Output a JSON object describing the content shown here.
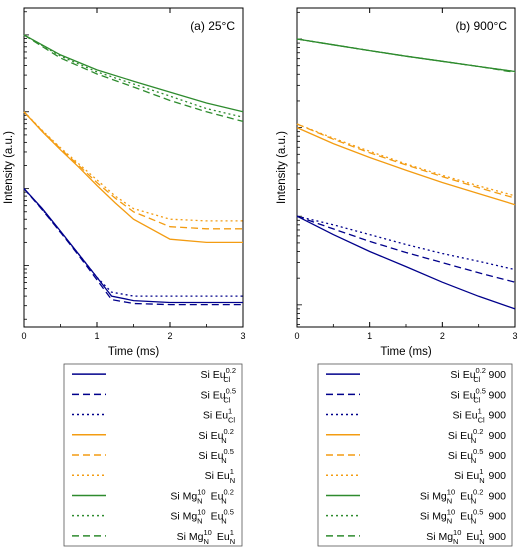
{
  "chart_data": [
    {
      "type": "line",
      "panel_label": "(a) 25°C",
      "xlabel": "Time (ms)",
      "ylabel": "Intensity (a.u.)",
      "xlim": [
        0,
        3
      ],
      "xticks": [
        0,
        1,
        2,
        3
      ],
      "yscale": "log",
      "ytick_labels": "none",
      "series": [
        {
          "name": "Si Eu_Cl^0.2",
          "color": "#00008b",
          "dash": "solid",
          "x": [
            0,
            0.25,
            0.5,
            0.75,
            1.0,
            1.2,
            1.5,
            2,
            3
          ],
          "y": [
            1,
            0.55,
            0.28,
            0.14,
            0.07,
            0.04,
            0.035,
            0.033,
            0.033
          ]
        },
        {
          "name": "Si Eu_Cl^0.5",
          "color": "#00008b",
          "dash": "dashed",
          "x": [
            0,
            0.25,
            0.5,
            0.75,
            1.0,
            1.2,
            1.5,
            2,
            3
          ],
          "y": [
            1,
            0.53,
            0.27,
            0.135,
            0.065,
            0.036,
            0.032,
            0.031,
            0.031
          ]
        },
        {
          "name": "Si Eu_Cl^1",
          "color": "#00008b",
          "dash": "dotted",
          "x": [
            0,
            0.25,
            0.5,
            0.75,
            1.0,
            1.2,
            1.5,
            2,
            3
          ],
          "y": [
            1,
            0.54,
            0.27,
            0.14,
            0.07,
            0.045,
            0.04,
            0.04,
            0.04
          ]
        },
        {
          "name": "Si Eu_N^0.2",
          "color": "#f39c12",
          "dash": "solid",
          "x": [
            0,
            0.25,
            0.5,
            0.75,
            1.0,
            1.25,
            1.5,
            2,
            2.5,
            3
          ],
          "y": [
            10,
            5.5,
            3.2,
            1.9,
            1.1,
            0.65,
            0.4,
            0.22,
            0.2,
            0.2
          ]
        },
        {
          "name": "Si Eu_N^0.5",
          "color": "#f39c12",
          "dash": "dashed",
          "x": [
            0,
            0.25,
            0.5,
            0.75,
            1.0,
            1.25,
            1.5,
            2,
            2.5,
            3
          ],
          "y": [
            10,
            5.6,
            3.3,
            2.0,
            1.2,
            0.75,
            0.5,
            0.32,
            0.3,
            0.3
          ]
        },
        {
          "name": "Si Eu_N^1",
          "color": "#f39c12",
          "dash": "dotted",
          "x": [
            0,
            0.25,
            0.5,
            0.75,
            1.0,
            1.25,
            1.5,
            2,
            2.5,
            3
          ],
          "y": [
            10,
            5.7,
            3.4,
            2.1,
            1.3,
            0.8,
            0.55,
            0.4,
            0.38,
            0.38
          ]
        },
        {
          "name": "Si Mg_N^10 Eu_N^0.2",
          "color": "#2e8b2e",
          "dash": "solid",
          "x": [
            0,
            0.5,
            1,
            1.5,
            2,
            2.5,
            3
          ],
          "y": [
            100,
            55,
            35,
            25,
            18,
            13,
            10
          ]
        },
        {
          "name": "Si Mg_N^10 Eu_N^0.5",
          "color": "#2e8b2e",
          "dash": "dotted",
          "x": [
            0,
            0.5,
            1,
            1.5,
            2,
            2.5,
            3
          ],
          "y": [
            100,
            53,
            33,
            23,
            16,
            11,
            8.5
          ]
        },
        {
          "name": "Si Mg_N^10 Eu_N^1",
          "color": "#2e8b2e",
          "dash": "dashed",
          "x": [
            0,
            0.5,
            1,
            1.5,
            2,
            2.5,
            3
          ],
          "y": [
            100,
            50,
            31,
            21,
            14,
            10,
            7.5
          ]
        }
      ]
    },
    {
      "type": "line",
      "panel_label": "(b) 900°C",
      "xlabel": "Time (ms)",
      "ylabel": "Intensity (a.u.)",
      "xlim": [
        0,
        3
      ],
      "xticks": [
        0,
        1,
        2,
        3
      ],
      "yscale": "log",
      "ytick_labels": "none",
      "series": [
        {
          "name": "Si Eu_Cl^0.2 900",
          "color": "#00008b",
          "dash": "solid",
          "x": [
            0,
            0.5,
            1,
            1.5,
            2,
            2.5,
            3
          ],
          "y": [
            1,
            0.62,
            0.4,
            0.27,
            0.18,
            0.125,
            0.09
          ]
        },
        {
          "name": "Si Eu_Cl^0.5 900",
          "color": "#00008b",
          "dash": "dashed",
          "x": [
            0,
            0.5,
            1,
            1.5,
            2,
            2.5,
            3
          ],
          "y": [
            1,
            0.72,
            0.52,
            0.39,
            0.3,
            0.23,
            0.18
          ]
        },
        {
          "name": "Si Eu_Cl^1 900",
          "color": "#00008b",
          "dash": "dotted",
          "x": [
            0,
            0.5,
            1,
            1.5,
            2,
            2.5,
            3
          ],
          "y": [
            1,
            0.8,
            0.62,
            0.48,
            0.38,
            0.31,
            0.25
          ]
        },
        {
          "name": "Si Eu_N^0.2 900",
          "color": "#f39c12",
          "dash": "solid",
          "x": [
            0,
            0.5,
            1,
            1.5,
            2,
            2.5,
            3
          ],
          "y": [
            10,
            6.6,
            4.6,
            3.3,
            2.4,
            1.8,
            1.35
          ]
        },
        {
          "name": "Si Eu_N^0.5 900",
          "color": "#f39c12",
          "dash": "dashed",
          "x": [
            0,
            0.5,
            1,
            1.5,
            2,
            2.5,
            3
          ],
          "y": [
            11,
            7.4,
            5.2,
            3.8,
            2.8,
            2.1,
            1.6
          ]
        },
        {
          "name": "Si Eu_N^1 900",
          "color": "#f39c12",
          "dash": "dotted",
          "x": [
            0,
            0.5,
            1,
            1.5,
            2,
            2.5,
            3
          ],
          "y": [
            11,
            7.6,
            5.4,
            3.9,
            2.9,
            2.2,
            1.7
          ]
        },
        {
          "name": "Si Mg_N^10 Eu_N^0.2 900",
          "color": "#2e8b2e",
          "dash": "solid",
          "x": [
            0,
            0.5,
            1,
            1.5,
            2,
            2.5,
            3
          ],
          "y": [
            100,
            86,
            74,
            64,
            56,
            49,
            43
          ]
        },
        {
          "name": "Si Mg_N^10 Eu_N^0.5 900",
          "color": "#2e8b2e",
          "dash": "dotted",
          "x": [
            0,
            0.5,
            1,
            1.5,
            2,
            2.5,
            3
          ],
          "y": [
            100,
            86,
            74,
            64,
            56,
            49,
            43
          ]
        },
        {
          "name": "Si Mg_N^10 Eu_N^1 900",
          "color": "#2e8b2e",
          "dash": "dashed",
          "x": [
            0,
            0.5,
            1,
            1.5,
            2,
            2.5,
            3
          ],
          "y": [
            100,
            86,
            74,
            64,
            56,
            49,
            42
          ]
        }
      ]
    }
  ],
  "legends": [
    {
      "entries": [
        {
          "prefix": "Si ",
          "parts": [
            {
              "t": "Eu",
              "sub": "Cl",
              "sup": "0.2"
            }
          ],
          "suffix": "",
          "color": "#00008b",
          "dash": "solid"
        },
        {
          "prefix": "Si ",
          "parts": [
            {
              "t": "Eu",
              "sub": "Cl",
              "sup": "0.5"
            }
          ],
          "suffix": "",
          "color": "#00008b",
          "dash": "dashed"
        },
        {
          "prefix": "Si ",
          "parts": [
            {
              "t": "Eu",
              "sub": "Cl",
              "sup": "1"
            }
          ],
          "suffix": "",
          "color": "#00008b",
          "dash": "dotted"
        },
        {
          "prefix": "Si ",
          "parts": [
            {
              "t": "Eu",
              "sub": "N",
              "sup": "0.2"
            }
          ],
          "suffix": "",
          "color": "#f39c12",
          "dash": "solid"
        },
        {
          "prefix": "Si ",
          "parts": [
            {
              "t": "Eu",
              "sub": "N",
              "sup": "0.5"
            }
          ],
          "suffix": "",
          "color": "#f39c12",
          "dash": "dashed"
        },
        {
          "prefix": "Si ",
          "parts": [
            {
              "t": "Eu",
              "sub": "N",
              "sup": "1"
            }
          ],
          "suffix": "",
          "color": "#f39c12",
          "dash": "dotted"
        },
        {
          "prefix": "Si ",
          "parts": [
            {
              "t": "Mg",
              "sub": "N",
              "sup": "10"
            },
            {
              "t": " Eu",
              "sub": "N",
              "sup": "0.2"
            }
          ],
          "suffix": "",
          "color": "#2e8b2e",
          "dash": "solid"
        },
        {
          "prefix": "Si ",
          "parts": [
            {
              "t": "Mg",
              "sub": "N",
              "sup": "10"
            },
            {
              "t": " Eu",
              "sub": "N",
              "sup": "0.5"
            }
          ],
          "suffix": "",
          "color": "#2e8b2e",
          "dash": "dotted"
        },
        {
          "prefix": "Si ",
          "parts": [
            {
              "t": "Mg",
              "sub": "N",
              "sup": "10"
            },
            {
              "t": " Eu",
              "sub": "N",
              "sup": "1"
            }
          ],
          "suffix": "",
          "color": "#2e8b2e",
          "dash": "dashed"
        }
      ]
    },
    {
      "entries": [
        {
          "prefix": "Si ",
          "parts": [
            {
              "t": "Eu",
              "sub": "Cl",
              "sup": "0.2"
            }
          ],
          "suffix": " 900",
          "color": "#00008b",
          "dash": "solid"
        },
        {
          "prefix": "Si ",
          "parts": [
            {
              "t": "Eu",
              "sub": "Cl",
              "sup": "0.5"
            }
          ],
          "suffix": " 900",
          "color": "#00008b",
          "dash": "dashed"
        },
        {
          "prefix": "Si ",
          "parts": [
            {
              "t": "Eu",
              "sub": "Cl",
              "sup": "1"
            }
          ],
          "suffix": " 900",
          "color": "#00008b",
          "dash": "dotted"
        },
        {
          "prefix": "Si ",
          "parts": [
            {
              "t": "Eu",
              "sub": "N",
              "sup": "0.2"
            }
          ],
          "suffix": " 900",
          "color": "#f39c12",
          "dash": "solid"
        },
        {
          "prefix": "Si ",
          "parts": [
            {
              "t": "Eu",
              "sub": "N",
              "sup": "0.5"
            }
          ],
          "suffix": " 900",
          "color": "#f39c12",
          "dash": "dashed"
        },
        {
          "prefix": "Si ",
          "parts": [
            {
              "t": "Eu",
              "sub": "N",
              "sup": "1"
            }
          ],
          "suffix": " 900",
          "color": "#f39c12",
          "dash": "dotted"
        },
        {
          "prefix": "Si ",
          "parts": [
            {
              "t": "Mg",
              "sub": "N",
              "sup": "10"
            },
            {
              "t": " Eu",
              "sub": "N",
              "sup": "0.2"
            }
          ],
          "suffix": " 900",
          "color": "#2e8b2e",
          "dash": "solid"
        },
        {
          "prefix": "Si ",
          "parts": [
            {
              "t": "Mg",
              "sub": "N",
              "sup": "10"
            },
            {
              "t": " Eu",
              "sub": "N",
              "sup": "0.5"
            }
          ],
          "suffix": " 900",
          "color": "#2e8b2e",
          "dash": "dotted"
        },
        {
          "prefix": "Si ",
          "parts": [
            {
              "t": "Mg",
              "sub": "N",
              "sup": "10"
            },
            {
              "t": " Eu",
              "sub": "N",
              "sup": "1"
            }
          ],
          "suffix": " 900",
          "color": "#2e8b2e",
          "dash": "dashed"
        }
      ]
    }
  ]
}
